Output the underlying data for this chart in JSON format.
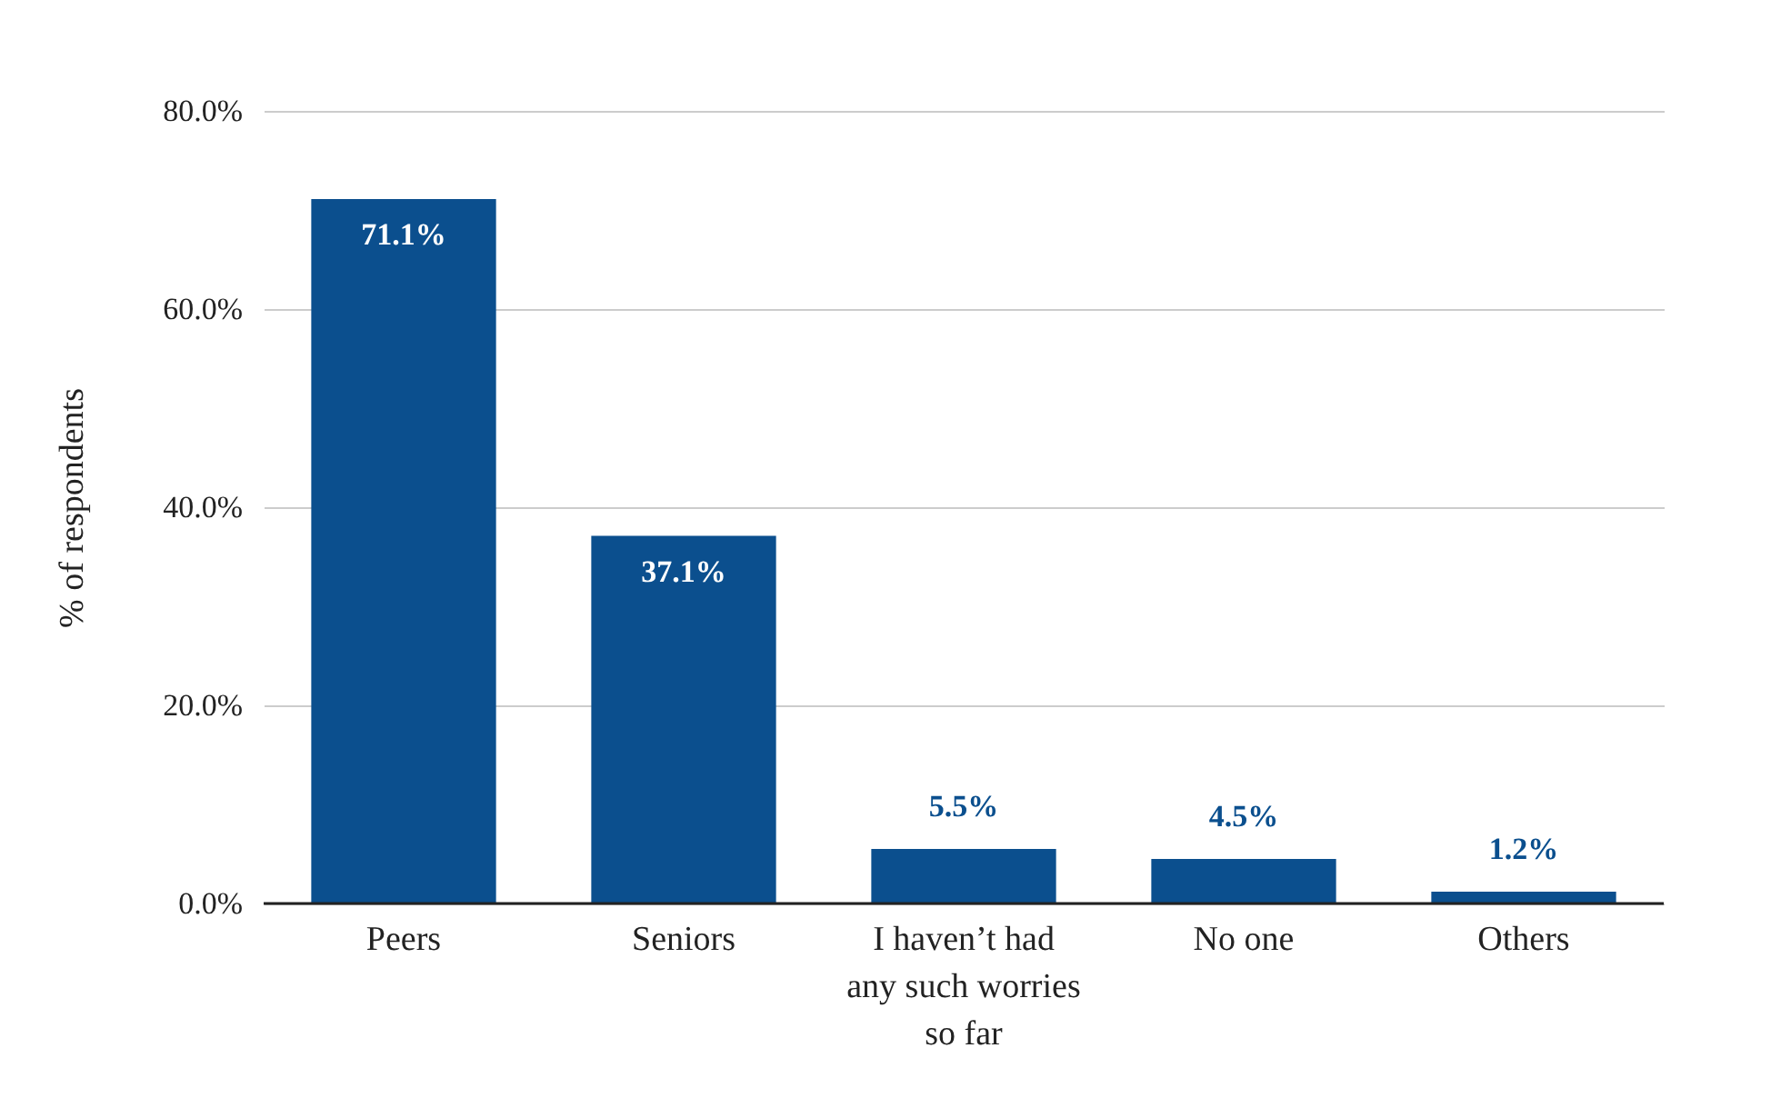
{
  "chart_data": {
    "type": "bar",
    "ylabel": "% of respondents",
    "categories": [
      "Peers",
      "Seniors",
      "I haven’t had any such worries so far",
      "No one",
      "Others"
    ],
    "values": [
      71.1,
      37.1,
      5.5,
      4.5,
      1.2
    ],
    "value_labels": [
      "71.1%",
      "37.1%",
      "5.5%",
      "4.5%",
      "1.2%"
    ],
    "color": "#0b4f8e",
    "ylim": [
      0,
      80
    ],
    "yticks": [
      {
        "value": 0,
        "label": "0.0%"
      },
      {
        "value": 20,
        "label": "20.0%"
      },
      {
        "value": 40,
        "label": "40.0%"
      },
      {
        "value": 60,
        "label": "60.0%"
      },
      {
        "value": 80,
        "label": "80.0%"
      }
    ],
    "grid": "y"
  }
}
